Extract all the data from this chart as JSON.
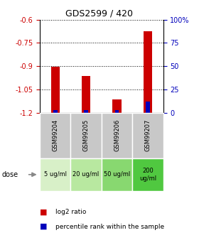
{
  "title": "GDS2599 / 420",
  "samples": [
    "GSM99204",
    "GSM99205",
    "GSM99206",
    "GSM99207"
  ],
  "doses": [
    "5 ug/ml",
    "20 ug/ml",
    "50 ug/ml",
    "200\nug/ml"
  ],
  "dose_colors": [
    "#d8f0c8",
    "#b8e8a0",
    "#88d870",
    "#50c840"
  ],
  "log2_values": [
    -0.905,
    -0.965,
    -1.115,
    -0.675
  ],
  "percentile_values": [
    3.0,
    3.0,
    3.0,
    12.0
  ],
  "ylim_left": [
    -1.2,
    -0.6
  ],
  "ylim_right": [
    0,
    100
  ],
  "yticks_left": [
    -1.2,
    -1.05,
    -0.9,
    -0.75,
    -0.6
  ],
  "yticks_right": [
    0,
    25,
    50,
    75,
    100
  ],
  "red_color": "#cc0000",
  "blue_color": "#0000bb",
  "sample_box_color": "#c8c8c8",
  "legend_red_label": "log2 ratio",
  "legend_blue_label": "percentile rank within the sample",
  "dose_label": "dose"
}
